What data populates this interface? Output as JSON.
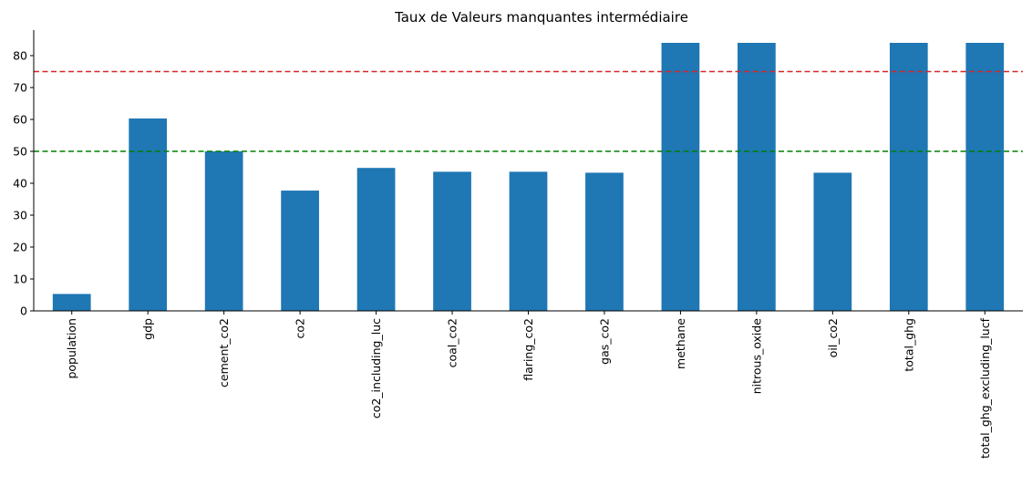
{
  "chart_data": {
    "type": "bar",
    "title": "Taux de Valeurs manquantes intermédiaire",
    "xlabel": "",
    "ylabel": "",
    "categories": [
      "population",
      "gdp",
      "cement_co2",
      "co2",
      "co2_including_luc",
      "coal_co2",
      "flaring_co2",
      "gas_co2",
      "methane",
      "nitrous_oxide",
      "oil_co2",
      "total_ghg",
      "total_ghg_excluding_lucf"
    ],
    "values": [
      5.3,
      60.3,
      50.0,
      37.7,
      44.8,
      43.6,
      43.6,
      43.3,
      84.0,
      84.0,
      43.3,
      84.0,
      84.0
    ],
    "ylim": [
      0,
      88
    ],
    "yticks": [
      "0",
      "10",
      "20",
      "30",
      "40",
      "50",
      "60",
      "70",
      "80"
    ],
    "bar_color": "#1f77b4",
    "reference_lines": [
      {
        "value": 75,
        "color": "#d62728",
        "style": "dashed"
      },
      {
        "value": 50,
        "color": "#008000",
        "style": "dashed"
      }
    ],
    "grid": false,
    "legend": "none"
  }
}
